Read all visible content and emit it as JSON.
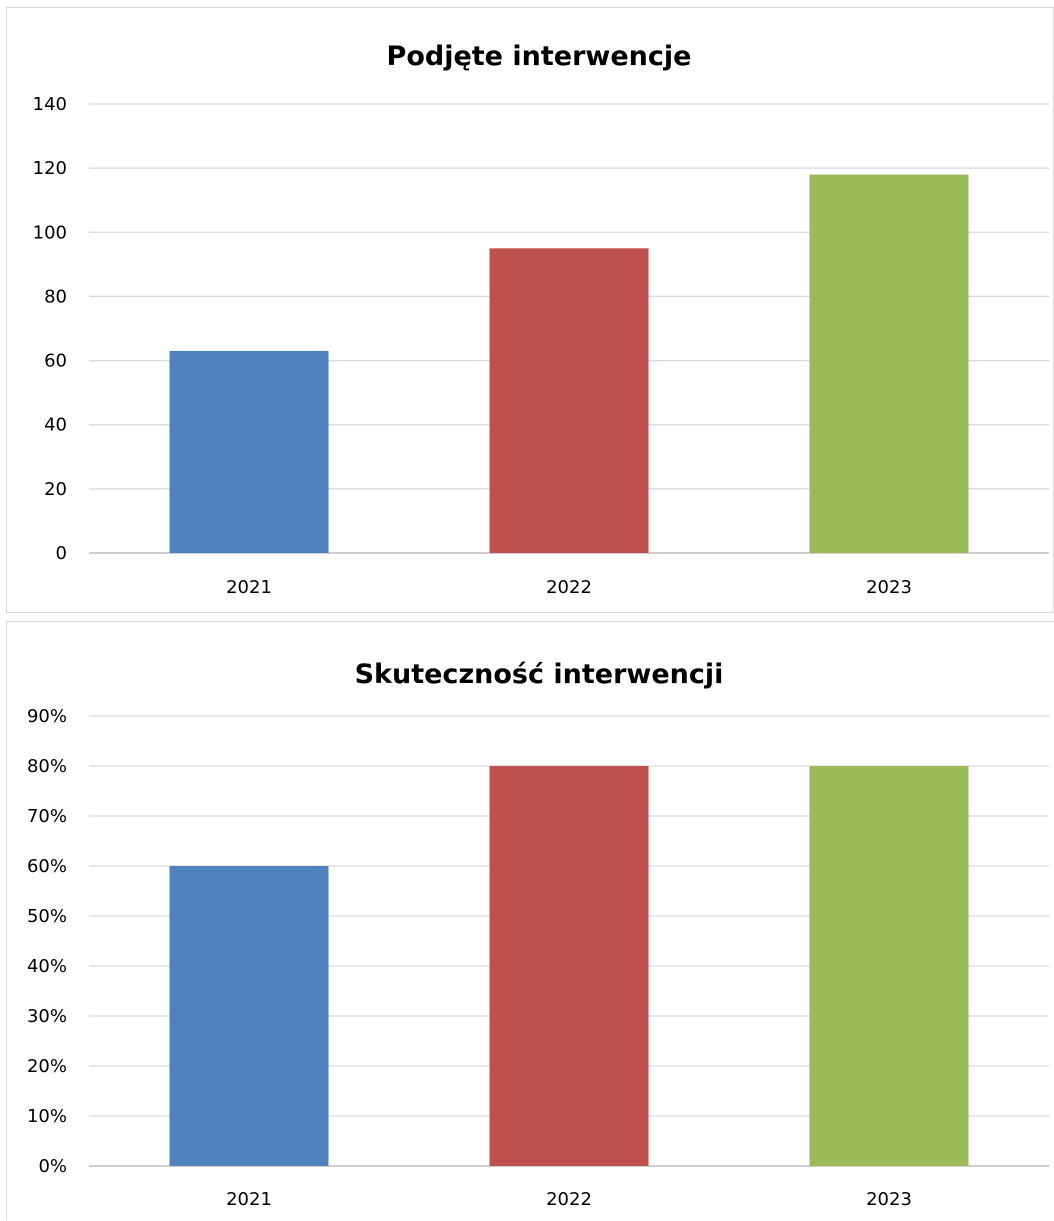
{
  "chart_data": [
    {
      "type": "bar",
      "title": "Podjęte interwencje",
      "categories": [
        "2021",
        "2022",
        "2023"
      ],
      "values": [
        63,
        95,
        118
      ],
      "colors": [
        "#4f81bd",
        "#c0504d",
        "#9bbb59"
      ],
      "ylim": [
        0,
        140
      ],
      "yticks": [
        "0",
        "20",
        "40",
        "60",
        "80",
        "100",
        "120",
        "140"
      ],
      "grid": true,
      "legend": "none"
    },
    {
      "type": "bar",
      "title": "Skuteczność interwencji",
      "categories": [
        "2021",
        "2022",
        "2023"
      ],
      "values": [
        60,
        80,
        80
      ],
      "colors": [
        "#4f81bd",
        "#c0504d",
        "#9bbb59"
      ],
      "ylim": [
        0,
        90
      ],
      "yticks": [
        "0%",
        "10%",
        "20%",
        "30%",
        "40%",
        "50%",
        "60%",
        "70%",
        "80%",
        "90%"
      ],
      "grid": true,
      "legend": "none"
    }
  ]
}
